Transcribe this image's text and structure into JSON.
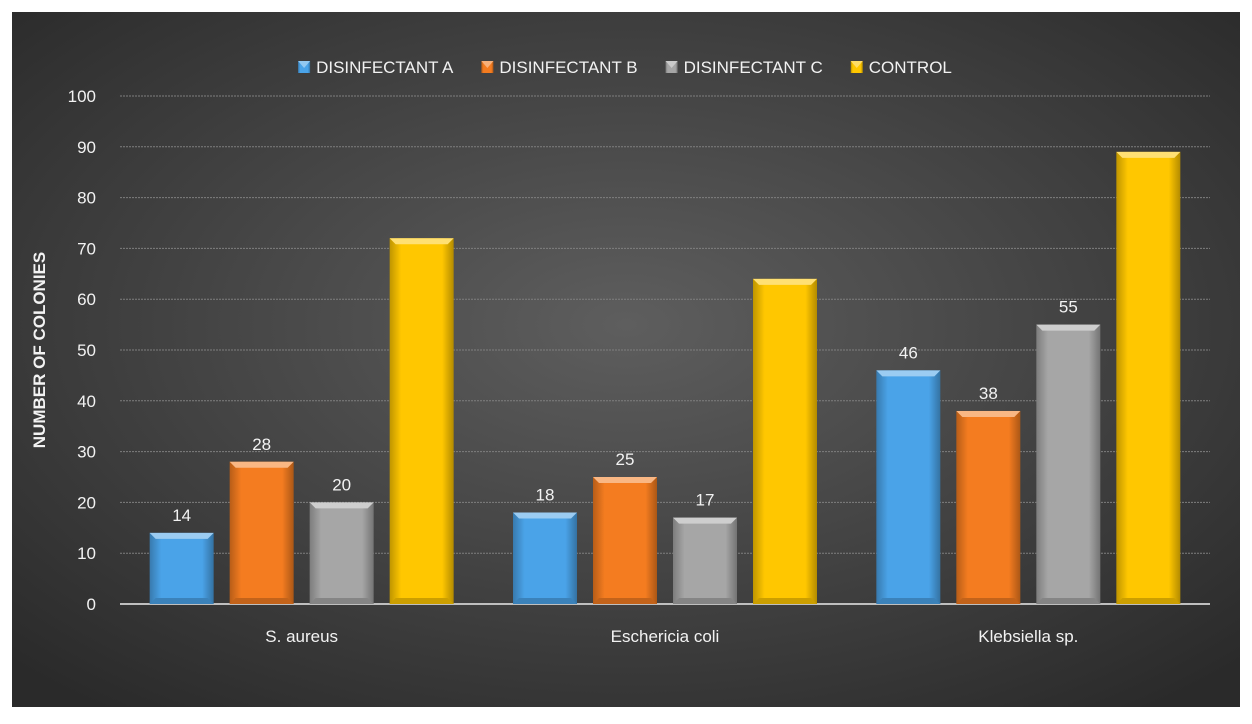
{
  "chart_data": {
    "type": "bar",
    "categories": [
      "S. aureus",
      "Eschericia coli",
      "Klebsiella sp."
    ],
    "series": [
      {
        "name": "DISINFECTANT A",
        "values": [
          14,
          18,
          46
        ],
        "color": "#4aa3e8",
        "labels": [
          "14",
          "18",
          "46"
        ]
      },
      {
        "name": "DISINFECTANT B",
        "values": [
          28,
          25,
          38
        ],
        "color": "#f47c20",
        "labels": [
          "28",
          "25",
          "38"
        ]
      },
      {
        "name": "DISINFECTANT C",
        "values": [
          20,
          17,
          55
        ],
        "color": "#a6a6a6",
        "labels": [
          "20",
          "17",
          "55"
        ]
      },
      {
        "name": "CONTROL",
        "values": [
          72,
          64,
          89
        ],
        "color": "#ffc700",
        "labels": [
          null,
          null,
          null
        ]
      }
    ],
    "title": "",
    "xlabel": "",
    "ylabel": "NUMBER OF COLONIES",
    "ylim": [
      0,
      100
    ],
    "yticks": [
      0,
      10,
      20,
      30,
      40,
      50,
      60,
      70,
      80,
      90,
      100
    ],
    "grid": true,
    "legend_position": "top"
  },
  "colors": {
    "background_inner": "#595959",
    "background_outer": "#262626",
    "grid": "#7f7f7f",
    "text": "#f2f2f2"
  }
}
